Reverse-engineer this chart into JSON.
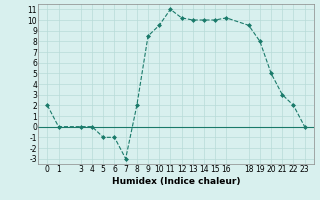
{
  "x": [
    0,
    1,
    3,
    4,
    5,
    6,
    7,
    8,
    9,
    10,
    11,
    12,
    13,
    14,
    15,
    16,
    18,
    19,
    20,
    21,
    22,
    23
  ],
  "y": [
    2,
    0,
    0,
    0,
    -1,
    -1,
    -3,
    2,
    8.5,
    9.5,
    11,
    10.2,
    10,
    10,
    10,
    10.2,
    9.5,
    8,
    5,
    3,
    2,
    0
  ],
  "line_color": "#1a7a6a",
  "bg_color": "#d8f0ee",
  "grid_color": "#b8dbd8",
  "xlabel": "Humidex (Indice chaleur)",
  "ylim": [
    -3.5,
    11.5
  ],
  "xlim": [
    -0.8,
    23.8
  ],
  "xticks": [
    0,
    1,
    3,
    4,
    5,
    6,
    7,
    8,
    9,
    10,
    11,
    12,
    13,
    14,
    15,
    16,
    18,
    19,
    20,
    21,
    22,
    23
  ],
  "yticks": [
    -3,
    -2,
    -1,
    0,
    1,
    2,
    3,
    4,
    5,
    6,
    7,
    8,
    9,
    10,
    11
  ],
  "marker": "D",
  "marker_size": 2,
  "linewidth": 0.8,
  "tick_fontsize": 5.5,
  "xlabel_fontsize": 6.5
}
